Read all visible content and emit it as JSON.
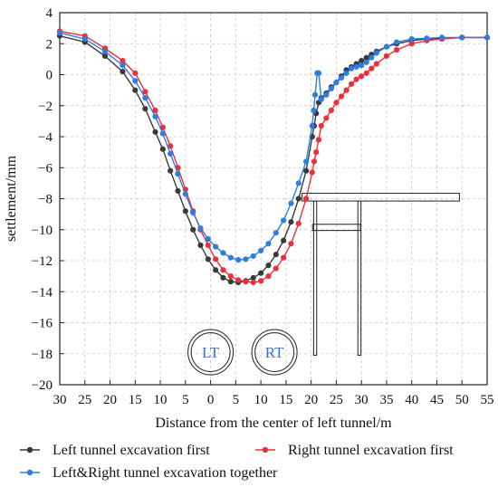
{
  "chart_data": {
    "type": "line",
    "xlabel": "Distance from the center of left tunnel/m",
    "ylabel": "settlement/mm",
    "x_tick_labels": [
      "30",
      "25",
      "20",
      "15",
      "10",
      "5",
      "0",
      "5",
      "10",
      "15",
      "20",
      "25",
      "30",
      "35",
      "40",
      "45",
      "50",
      "55"
    ],
    "y_tick_labels": [
      "4",
      "2",
      "0",
      "−2",
      "−4",
      "−6",
      "−8",
      "−10",
      "−12",
      "−14",
      "−16",
      "−18",
      "−20"
    ],
    "xlim": [
      -30,
      55
    ],
    "ylim": [
      -20,
      4
    ],
    "grid": true,
    "legend_position": "bottom",
    "series": [
      {
        "name": "Left tunnel excavation first",
        "color": "#3a3a3a",
        "x": [
          -30,
          -25,
          -21,
          -17.5,
          -15,
          -13,
          -11,
          -9.5,
          -8,
          -6.5,
          -5,
          -3.5,
          -2,
          -0.5,
          1,
          2.5,
          4,
          5.5,
          7,
          8.5,
          10,
          11.5,
          13,
          14.5,
          16,
          17.5,
          19,
          20.2,
          20.6,
          21,
          21.5,
          22,
          23,
          24,
          25,
          26,
          27,
          28,
          29,
          30,
          31,
          32,
          33,
          35,
          37,
          40,
          43,
          46,
          50,
          55
        ],
        "y": [
          2.5,
          2.1,
          1.2,
          0.2,
          -1.0,
          -2.2,
          -3.7,
          -4.8,
          -6.2,
          -7.5,
          -8.8,
          -10.0,
          -11.0,
          -11.9,
          -12.6,
          -13.1,
          -13.35,
          -13.4,
          -13.3,
          -13.1,
          -12.8,
          -12.3,
          -11.6,
          -10.7,
          -9.5,
          -8.0,
          -6.2,
          -4.0,
          -3.3,
          -2.5,
          -1.8,
          -1.5,
          -1.2,
          -0.8,
          -0.5,
          -0.1,
          0.3,
          0.5,
          0.7,
          0.9,
          1.1,
          1.3,
          1.5,
          1.8,
          2.0,
          2.2,
          2.3,
          2.35,
          2.4,
          2.4
        ]
      },
      {
        "name": "Right tunnel excavation first",
        "color": "#e8313a",
        "x": [
          -30,
          -25,
          -21,
          -17.5,
          -15,
          -13,
          -11,
          -9.5,
          -8,
          -6.5,
          -5,
          -3.5,
          -2,
          -0.5,
          1,
          2.5,
          4,
          5.5,
          7,
          8.5,
          10,
          11.5,
          13,
          14.5,
          16,
          17.5,
          19,
          20.2,
          20.6,
          21,
          21.5,
          22,
          23,
          24,
          25,
          26,
          27,
          28,
          29,
          30,
          31,
          32,
          33,
          35,
          37,
          40,
          43,
          46,
          50,
          55
        ],
        "y": [
          2.8,
          2.5,
          1.7,
          0.9,
          0.1,
          -1.1,
          -2.3,
          -3.4,
          -4.6,
          -6.0,
          -7.4,
          -8.8,
          -10.0,
          -11.0,
          -11.9,
          -12.6,
          -13.0,
          -13.25,
          -13.35,
          -13.4,
          -13.3,
          -13.0,
          -12.5,
          -11.8,
          -10.9,
          -9.6,
          -8.0,
          -6.3,
          -5.6,
          -5.0,
          -4.2,
          -3.3,
          -2.8,
          -2.3,
          -1.8,
          -1.4,
          -1.0,
          -0.6,
          -0.3,
          -0.1,
          0.1,
          0.4,
          0.7,
          1.2,
          1.6,
          2.0,
          2.2,
          2.3,
          2.4,
          2.4
        ]
      },
      {
        "name": "Left&Right tunnel excavation together",
        "color": "#2f7de1",
        "x": [
          -30,
          -25,
          -21,
          -17.5,
          -15,
          -13,
          -11,
          -9.5,
          -8,
          -6.5,
          -5,
          -3.5,
          -2,
          -0.5,
          1,
          2.5,
          4,
          5.5,
          7,
          8.5,
          10,
          11.5,
          13,
          14.5,
          16,
          17.5,
          19,
          20.2,
          20.5,
          20.8,
          21.2,
          21.5,
          22,
          23,
          24,
          25,
          26,
          27,
          28,
          29,
          30,
          31,
          32,
          33,
          35,
          37,
          40,
          43,
          46,
          50,
          55
        ],
        "y": [
          2.7,
          2.3,
          1.5,
          0.6,
          -0.4,
          -1.5,
          -2.7,
          -3.8,
          -5.1,
          -6.4,
          -7.7,
          -8.9,
          -9.9,
          -10.6,
          -11.1,
          -11.5,
          -11.8,
          -11.95,
          -11.9,
          -11.7,
          -11.35,
          -10.9,
          -10.2,
          -9.4,
          -8.3,
          -7.0,
          -5.6,
          -3.3,
          -2.3,
          -1.3,
          0.1,
          0.1,
          -1.6,
          -1.3,
          -0.9,
          -0.5,
          -0.2,
          0.1,
          0.4,
          0.5,
          0.6,
          0.8,
          1.1,
          1.4,
          1.8,
          2.1,
          2.3,
          2.35,
          2.4,
          2.4,
          2.4
        ]
      }
    ],
    "annotations": {
      "left_tunnel_label": "LT",
      "right_tunnel_label": "RT",
      "tunnel_label_color": "#3b6fc9",
      "structure_color": "#333333"
    }
  }
}
